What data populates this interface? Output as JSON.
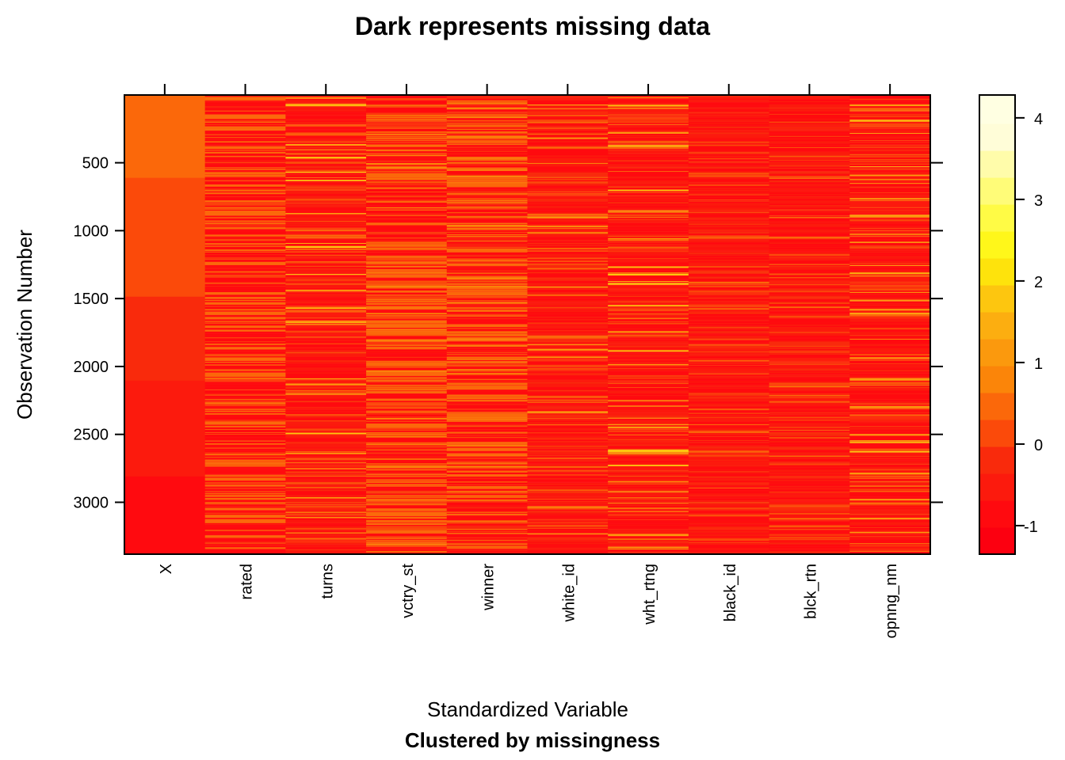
{
  "chart_data": {
    "type": "heatmap",
    "title": "Dark represents missing data",
    "xlabel": "Standardized Variable",
    "xlabel_sub": "Clustered by missingness",
    "ylabel": "Observation Number",
    "columns": [
      "X",
      "rated",
      "turns",
      "vctry_st",
      "winner",
      "white_id",
      "wht_rtng",
      "black_id",
      "blck_rtn",
      "opnng_nm"
    ],
    "ylim": [
      1,
      3382
    ],
    "y_ticks": [
      500,
      1000,
      1500,
      2000,
      2500,
      3000
    ],
    "y_reversed": true,
    "colorbar": {
      "range": [
        -1.35,
        4.28
      ],
      "ticks": [
        4,
        3,
        2,
        1,
        0,
        -1
      ],
      "breaks": [
        -1.35,
        -1.02,
        -0.69,
        -0.36,
        -0.03,
        0.3,
        0.63,
        0.96,
        1.29,
        1.62,
        1.95,
        2.28,
        2.61,
        2.94,
        3.27,
        3.6,
        3.93,
        4.28
      ],
      "colors": [
        "#fc0010",
        "#ff0a0f",
        "#fc1a0d",
        "#f92a0c",
        "#fb4a0a",
        "#fb680a",
        "#fb8509",
        "#fb990d",
        "#fcae10",
        "#fdc60f",
        "#fee30c",
        "#fff71a",
        "#fffb45",
        "#fffc78",
        "#fffcaa",
        "#fffdd8",
        "#ffffe2"
      ]
    },
    "X_segments": [
      {
        "from": 1,
        "to": 611,
        "value": 0.45
      },
      {
        "from": 611,
        "to": 1486,
        "value": 0.15
      },
      {
        "from": 1486,
        "to": 2104,
        "value": -0.2
      },
      {
        "from": 2104,
        "to": 2810,
        "value": -0.55
      },
      {
        "from": 2810,
        "to": 3382,
        "value": -0.9
      }
    ],
    "column_values": {
      "rated": [
        -0.9,
        0.6
      ],
      "turns": [
        -0.9,
        -0.5,
        -0.2,
        0.2,
        0.6,
        1.1,
        1.8
      ],
      "vctry_st": [
        -0.9,
        0.6,
        0.9,
        0.2
      ],
      "winner": [
        -0.9,
        0.6,
        0.9,
        -0.2
      ],
      "white_id": [
        -0.9,
        -0.5,
        -0.2,
        0.2,
        0.6,
        1.0
      ],
      "wht_rtng": [
        -0.9,
        -0.5,
        -0.2,
        0.2,
        0.6,
        1.2,
        1.8
      ],
      "black_id": [
        -0.9,
        -0.5,
        -0.2,
        0.2,
        0.6
      ],
      "blck_rtn": [
        -0.9,
        -0.5,
        -0.2,
        0.2,
        0.6
      ],
      "opnng_nm": [
        -0.9,
        -0.5,
        0.2,
        0.6,
        1.0,
        1.3
      ]
    }
  }
}
